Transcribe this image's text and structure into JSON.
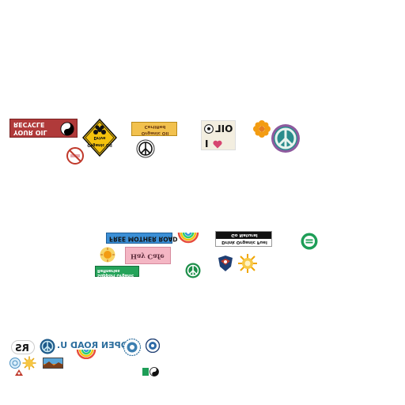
{
  "stickers": {
    "recycle_oil": {
      "line1": "YOUR OIL",
      "line2": "RECYCLE"
    },
    "organic_oil_diamond": {
      "line1": "Organic Oil",
      "line2": "Drive"
    },
    "organic_oil_certified": {
      "line1": "Organic Oil",
      "line2": "Certified"
    },
    "i_love_oil": {
      "line1": "I",
      "line2": "OIL"
    },
    "free_mother_road": {
      "text": "FREE MOTHER ROAD"
    },
    "hay_cafe": {
      "text": "Hay Cafe"
    },
    "support_organic": {
      "line1": "Support Organic",
      "line2": "Refineries"
    },
    "drink_organic_fuel": {
      "line1": "Drink Organic Fuel",
      "line2": "Go Natural"
    },
    "rs": {
      "text": "RS"
    },
    "open_road": {
      "text": "OPEN ROAD U."
    }
  },
  "colors": {
    "red": "#c0392b",
    "yellow": "#f1c40f",
    "orange": "#e67e22",
    "blue": "#2e86c1",
    "green": "#27ae60",
    "teal": "#1a6b6b",
    "pink": "#f5b7c5",
    "black": "#111111"
  }
}
